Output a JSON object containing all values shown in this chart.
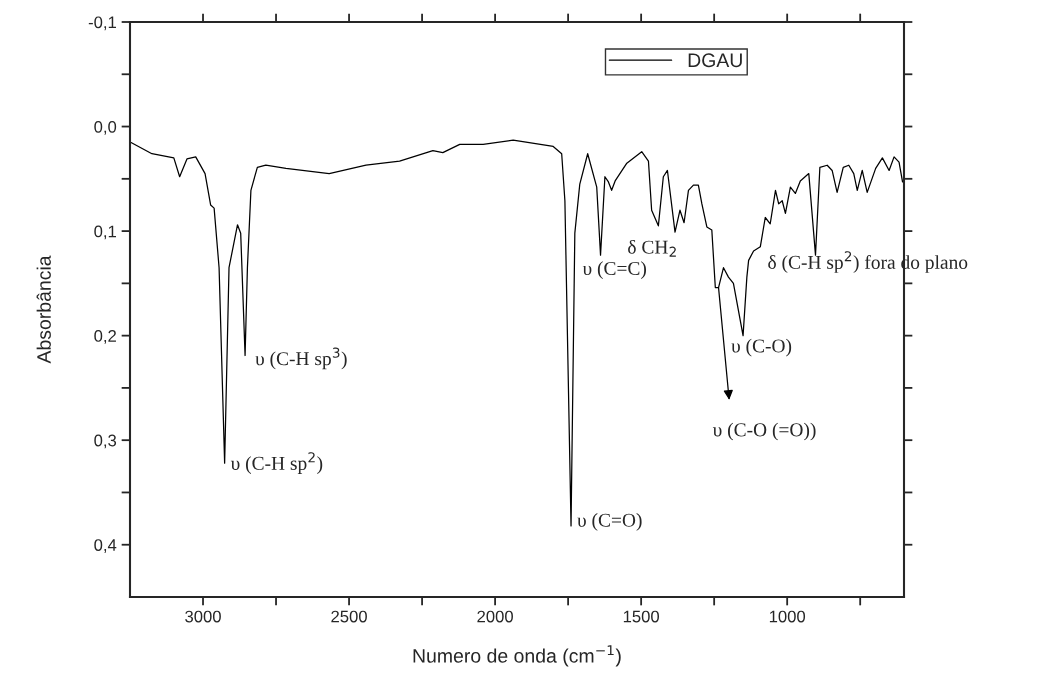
{
  "chart_data": {
    "type": "line",
    "xlabel": "Numero de onda (cm$^{−1}$)",
    "ylabel": "Absorbância",
    "x": [
      3248,
      3175,
      3100,
      3080,
      3055,
      3025,
      2993,
      2974,
      2962,
      2945,
      2926,
      2911,
      2882,
      2871,
      2856,
      2848,
      2836,
      2814,
      2785,
      2716,
      2568,
      2442,
      2327,
      2213,
      2179,
      2121,
      2041,
      1938,
      1801,
      1772,
      1761,
      1740,
      1727,
      1710,
      1683,
      1652,
      1639,
      1624,
      1612,
      1601,
      1589,
      1549,
      1498,
      1475,
      1464,
      1441,
      1424,
      1410,
      1384,
      1367,
      1353,
      1338,
      1321,
      1304,
      1292,
      1275,
      1258,
      1246,
      1235,
      1218,
      1201,
      1184,
      1151,
      1138,
      1132,
      1115,
      1092,
      1075,
      1058,
      1040,
      1029,
      1017,
      1006,
      989,
      972,
      955,
      926,
      903,
      888,
      863,
      846,
      829,
      808,
      789,
      772,
      760,
      743,
      726,
      697,
      674,
      651,
      634,
      617,
      605
    ],
    "series": [
      {
        "name": "DGAU",
        "color": "#000000",
        "values": [
          0.015,
          0.026,
          0.03,
          0.048,
          0.031,
          0.029,
          0.045,
          0.075,
          0.078,
          0.135,
          0.322,
          0.135,
          0.094,
          0.102,
          0.219,
          0.135,
          0.061,
          0.039,
          0.037,
          0.04,
          0.045,
          0.037,
          0.033,
          0.023,
          0.025,
          0.017,
          0.017,
          0.013,
          0.019,
          0.026,
          0.071,
          0.382,
          0.102,
          0.055,
          0.026,
          0.058,
          0.123,
          0.048,
          0.053,
          0.061,
          0.052,
          0.035,
          0.024,
          0.033,
          0.08,
          0.095,
          0.048,
          0.042,
          0.101,
          0.08,
          0.092,
          0.061,
          0.056,
          0.056,
          0.074,
          0.096,
          0.099,
          0.154,
          0.154,
          0.135,
          0.144,
          0.15,
          0.2,
          0.144,
          0.128,
          0.119,
          0.115,
          0.087,
          0.093,
          0.061,
          0.074,
          0.071,
          0.083,
          0.058,
          0.064,
          0.052,
          0.045,
          0.123,
          0.039,
          0.037,
          0.042,
          0.063,
          0.039,
          0.037,
          0.045,
          0.061,
          0.042,
          0.063,
          0.04,
          0.03,
          0.042,
          0.029,
          0.034,
          0.053
        ]
      }
    ],
    "xlim": [
      3250,
      600
    ],
    "xticks": [
      3000,
      {
        "value": 2750,
        "label": null
      },
      2500,
      {
        "value": 2250,
        "label": null
      },
      2000,
      {
        "value": 1750,
        "label": null
      },
      1500,
      {
        "value": 1250,
        "label": null
      },
      1000,
      {
        "value": 750,
        "label": null
      }
    ],
    "ylim": [
      0.45,
      -0.1
    ],
    "yticks": [
      {
        "value": -0.1,
        "label": "-0,1"
      },
      {
        "value": -0.05,
        "label": null
      },
      {
        "value": 0.0,
        "label": "0,0"
      },
      {
        "value": 0.05,
        "label": null
      },
      {
        "value": 0.1,
        "label": "0,1"
      },
      {
        "value": 0.15,
        "label": null
      },
      {
        "value": 0.2,
        "label": "0,2"
      },
      {
        "value": 0.25,
        "label": null
      },
      {
        "value": 0.3,
        "label": "0,3"
      },
      {
        "value": 0.35,
        "label": null
      },
      {
        "value": 0.4,
        "label": "0,4"
      }
    ],
    "annotations": [
      {
        "text": "υ (C-H sp$^{3}$)",
        "x": 2856,
        "y": 0.219
      },
      {
        "text": "υ (C-H sp$^{2}$)",
        "x": 2926,
        "y": 0.322
      },
      {
        "text": "υ (C=O)",
        "x": 1740,
        "y": 0.382
      },
      {
        "text": "υ (C=C)",
        "x": 1639,
        "y": 0.123
      },
      {
        "text": "δ CH$_{2}$",
        "x": 1441,
        "y": 0.095
      },
      {
        "text": "δ (C-H sp$^{2}$) fora do plano",
        "x": 903,
        "y": 0.123
      },
      {
        "text": "υ (C-O)",
        "x": 1151,
        "y": 0.2
      },
      {
        "text": "υ (C-O (=O))",
        "x": 1235,
        "y": 0.154
      }
    ],
    "legend": "top right",
    "grid": false,
    "marker": "none",
    "line_style": "solid"
  }
}
